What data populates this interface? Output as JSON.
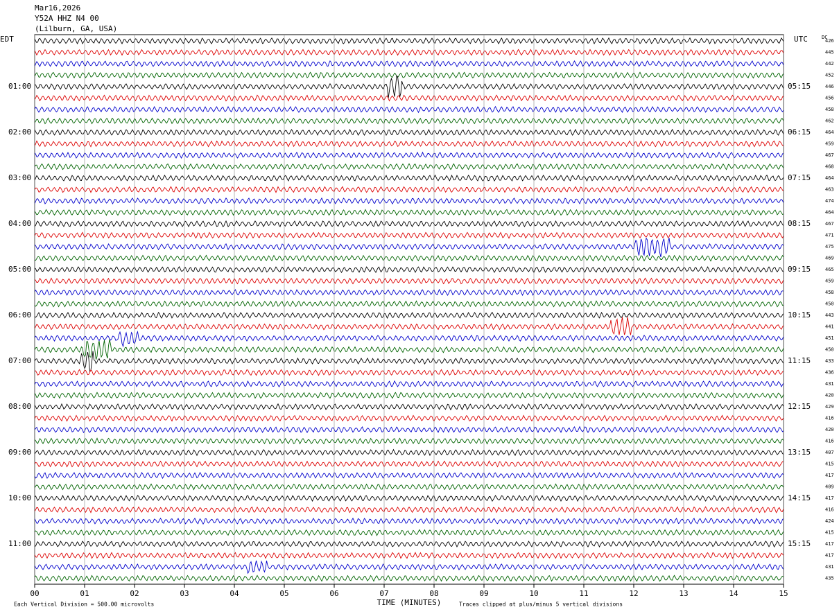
{
  "header": {
    "date": "Mar16,2026",
    "station": "Y52A HHZ N4 00",
    "location": "(Lilburn, GA, USA)"
  },
  "left_zone": "EDT",
  "right_zone": "UTC",
  "dc_label": "DC",
  "left_times": [
    "01:00",
    "02:00",
    "03:00",
    "04:00",
    "05:00",
    "06:00",
    "07:00",
    "08:00",
    "09:00",
    "10:00",
    "11:00"
  ],
  "right_times": [
    "05:15",
    "06:15",
    "07:15",
    "08:15",
    "09:15",
    "10:15",
    "11:15",
    "12:15",
    "13:15",
    "14:15",
    "15:15"
  ],
  "dc_values": [
    "426",
    "445",
    "442",
    "452",
    "446",
    "456",
    "458",
    "462",
    "464",
    "459",
    "467",
    "468",
    "464",
    "463",
    "474",
    "464",
    "467",
    "471",
    "475",
    "469",
    "465",
    "459",
    "458",
    "450",
    "443",
    "441",
    "451",
    "450",
    "433",
    "436",
    "431",
    "420",
    "429",
    "416",
    "420",
    "416",
    "407",
    "415",
    "417",
    "409",
    "417",
    "416",
    "424",
    "415",
    "417",
    "417",
    "431",
    "435"
  ],
  "x_ticks": [
    "00",
    "01",
    "02",
    "03",
    "04",
    "05",
    "06",
    "07",
    "08",
    "09",
    "10",
    "11",
    "12",
    "13",
    "14",
    "15"
  ],
  "x_label": "TIME (MINUTES)",
  "scale_note": "Each Vertical Division =  500.00 microvolts",
  "clip_note": "Traces clipped at plus/minus 5 vertical divisions"
}
